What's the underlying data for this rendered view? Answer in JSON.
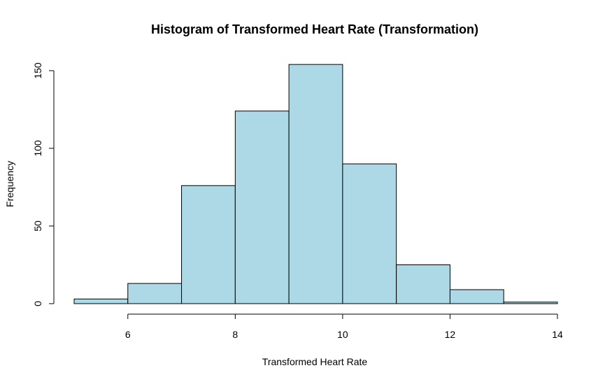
{
  "chart_data": {
    "type": "bar",
    "title": "Histogram of Transformed Heart Rate (Transformation)",
    "xlabel": "Transformed Heart Rate",
    "ylabel": "Frequency",
    "bins": [
      {
        "from": 5,
        "to": 6,
        "count": 3
      },
      {
        "from": 6,
        "to": 7,
        "count": 13
      },
      {
        "from": 7,
        "to": 8,
        "count": 76
      },
      {
        "from": 8,
        "to": 9,
        "count": 124
      },
      {
        "from": 9,
        "to": 10,
        "count": 154
      },
      {
        "from": 10,
        "to": 11,
        "count": 90
      },
      {
        "from": 11,
        "to": 12,
        "count": 25
      },
      {
        "from": 12,
        "to": 13,
        "count": 9
      },
      {
        "from": 13,
        "to": 14,
        "count": 1
      }
    ],
    "xlim": [
      5,
      14
    ],
    "ylim": [
      0,
      154
    ],
    "xticks": [
      6,
      8,
      10,
      12,
      14
    ],
    "yticks": [
      0,
      50,
      100,
      150
    ],
    "grid": false,
    "bar_color": "#add8e6",
    "edge_color": "#000000"
  }
}
